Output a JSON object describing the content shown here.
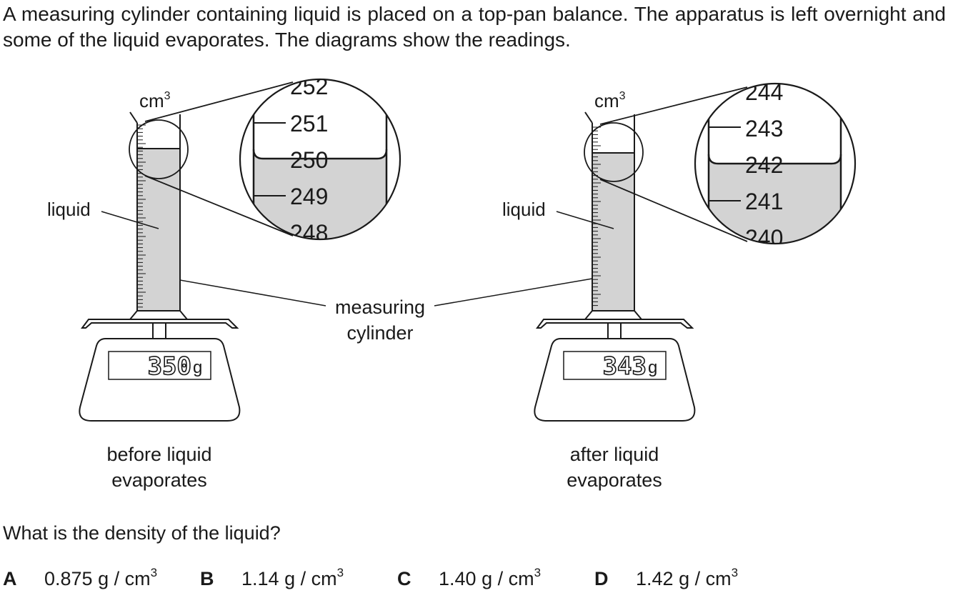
{
  "intro_text": "A measuring cylinder containing liquid is placed on a top-pan balance. The apparatus is left overnight and some of the liquid evaporates. The diagrams show the readings.",
  "unit_volume": "cm",
  "unit_volume_exp": "3",
  "unit_mass": "g",
  "liquid_label": "liquid",
  "cylinder_label_line1": "measuring",
  "cylinder_label_line2": "cylinder",
  "before": {
    "scale_reading": "350",
    "zoom_ticks": [
      "252",
      "251",
      "250",
      "249",
      "248"
    ],
    "caption_line1": "before liquid",
    "caption_line2": "evaporates"
  },
  "after": {
    "scale_reading": "343",
    "zoom_ticks": [
      "244",
      "243",
      "242",
      "241",
      "240"
    ],
    "caption_line1": "after liquid",
    "caption_line2": "evaporates"
  },
  "question": "What is the density of the liquid?",
  "options": [
    {
      "letter": "A",
      "value": "0.875",
      "unit": "g / cm",
      "exp": "3"
    },
    {
      "letter": "B",
      "value": "1.14",
      "unit": "g / cm",
      "exp": "3"
    },
    {
      "letter": "C",
      "value": "1.40",
      "unit": "g / cm",
      "exp": "3"
    },
    {
      "letter": "D",
      "value": "1.42",
      "unit": "g / cm",
      "exp": "3"
    }
  ],
  "colors": {
    "ink": "#1a1a1a",
    "liquid": "#d3d3d3",
    "paper": "#ffffff"
  }
}
